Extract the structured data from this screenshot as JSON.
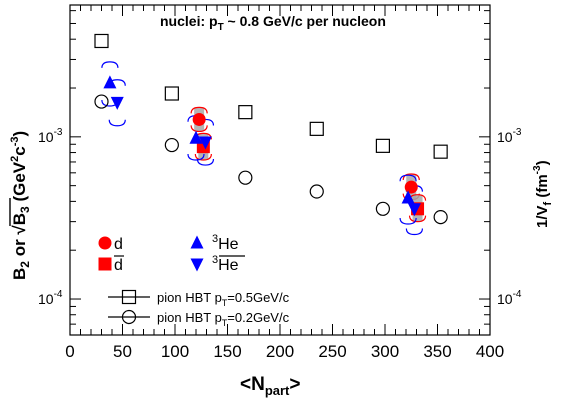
{
  "chart_data": {
    "type": "scatter",
    "annotation": {
      "main": "nuclei: p",
      "sub": "T",
      "rest": " ~ 0.8 GeV/c per nucleon"
    },
    "xlabel": {
      "main": "<N",
      "sub": "part",
      "rest": ">"
    },
    "ylabel_left": {
      "pre": "B",
      "sub": "2",
      "mid": " or ",
      "sqrt": "B",
      "sqrt_sub": "3",
      "paren": " (GeV",
      "sup": "2",
      "c": "c",
      "sup2": "-3",
      "close": ")"
    },
    "ylabel_right": {
      "pre": "1/V",
      "sub": "f",
      "paren": " (fm",
      "sup": "-3",
      "close": ")"
    },
    "xlim": [
      0,
      400
    ],
    "ylim": [
      6e-05,
      0.0065
    ],
    "yscale": "log",
    "x_ticks": [
      "0",
      "50",
      "100",
      "150",
      "200",
      "250",
      "300",
      "350",
      "400"
    ],
    "y_ticks_left": [
      {
        "base": "10",
        "exp": "-4",
        "value": 0.0001
      },
      {
        "base": "10",
        "exp": "-3",
        "value": 0.001
      }
    ],
    "y_ticks_right": [
      {
        "base": "10",
        "exp": "-4",
        "value": 0.0001
      },
      {
        "base": "10",
        "exp": "-3",
        "value": 0.001
      }
    ],
    "legend_nuclei": [
      {
        "label": "d",
        "marker": "circle",
        "color": "#ff0000"
      },
      {
        "label": "d̄",
        "label_text": "d",
        "overline": true,
        "marker": "square",
        "color": "#ff0000"
      },
      {
        "label_pre": "3",
        "label_text": "He",
        "overline": false,
        "marker": "triangle-up",
        "color": "#0000ff"
      },
      {
        "label_pre": "3",
        "label_text": "He",
        "overline": true,
        "marker": "triangle-down",
        "color": "#0000ff"
      }
    ],
    "legend_hbt": [
      {
        "label": "pion HBT p",
        "sub": "T",
        "rest": "=0.5GeV/c",
        "marker": "open-square"
      },
      {
        "label": "pion HBT p",
        "sub": "T",
        "rest": "=0.2GeV/c",
        "marker": "open-circle"
      }
    ],
    "series": [
      {
        "name": "d",
        "marker": "circle",
        "color": "#ff0000",
        "points": [
          {
            "x": 123,
            "y": 0.00128,
            "sys_lo": 0.00108,
            "sys_hi": 0.00152
          },
          {
            "x": 325,
            "y": 0.00049,
            "sys_lo": 0.00041,
            "sys_hi": 0.00059
          }
        ]
      },
      {
        "name": "d",
        "overline": true,
        "marker": "square",
        "color": "#ff0000",
        "points": [
          {
            "x": 127,
            "y": 0.00087,
            "sys_lo": 0.00072,
            "sys_hi": 0.00105
          },
          {
            "x": 331,
            "y": 0.00036,
            "sys_lo": 0.0003,
            "sys_hi": 0.00044
          }
        ]
      },
      {
        "name": "3He",
        "marker": "triangle-up",
        "color": "#0000ff",
        "points": [
          {
            "x": 38,
            "y": 0.00215,
            "sys_lo": 0.00155,
            "sys_hi": 0.0029
          },
          {
            "x": 120,
            "y": 0.00098,
            "sys_lo": 0.00072,
            "sys_hi": 0.00135
          },
          {
            "x": 322,
            "y": 0.00042,
            "sys_lo": 0.00029,
            "sys_hi": 0.00058
          }
        ]
      },
      {
        "name": "3He",
        "overline": true,
        "marker": "triangle-down",
        "color": "#0000ff",
        "points": [
          {
            "x": 45,
            "y": 0.00163,
            "sys_lo": 0.00117,
            "sys_hi": 0.00225
          },
          {
            "x": 129,
            "y": 0.00093,
            "sys_lo": 0.00067,
            "sys_hi": 0.00128
          },
          {
            "x": 328,
            "y": 0.00036,
            "sys_lo": 0.00025,
            "sys_hi": 0.0005
          }
        ]
      },
      {
        "name": "pion HBT pT=0.5GeV/c",
        "marker": "open-square",
        "color": "#000000",
        "points": [
          {
            "x": 30,
            "y": 0.0039
          },
          {
            "x": 97,
            "y": 0.00185
          },
          {
            "x": 167,
            "y": 0.00142
          },
          {
            "x": 235,
            "y": 0.00112
          },
          {
            "x": 298,
            "y": 0.00088
          },
          {
            "x": 353,
            "y": 0.00081
          }
        ]
      },
      {
        "name": "pion HBT pT=0.2GeV/c",
        "marker": "open-circle",
        "color": "#000000",
        "points": [
          {
            "x": 30,
            "y": 0.00165
          },
          {
            "x": 97,
            "y": 0.00089
          },
          {
            "x": 167,
            "y": 0.00056
          },
          {
            "x": 235,
            "y": 0.00046
          },
          {
            "x": 298,
            "y": 0.00036
          },
          {
            "x": 353,
            "y": 0.00032
          }
        ]
      }
    ]
  }
}
